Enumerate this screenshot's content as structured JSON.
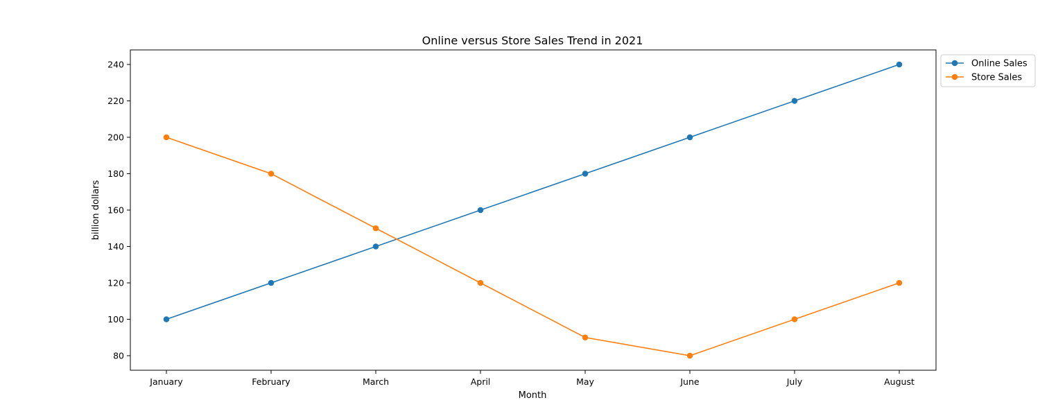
{
  "chart_data": {
    "type": "line",
    "title": "Online versus Store Sales Trend in 2021",
    "xlabel": "Month",
    "ylabel": "billion dollars",
    "categories": [
      "January",
      "February",
      "March",
      "April",
      "May",
      "June",
      "July",
      "August"
    ],
    "y_ticks": [
      80,
      100,
      120,
      140,
      160,
      180,
      200,
      220,
      240
    ],
    "ylim": [
      72,
      248
    ],
    "grid": false,
    "legend_position": "outside-top-right",
    "series": [
      {
        "name": "Online Sales",
        "color": "#1f77b4",
        "values": [
          100,
          120,
          140,
          160,
          180,
          200,
          220,
          240
        ]
      },
      {
        "name": "Store Sales",
        "color": "#ff7f0e",
        "values": [
          200,
          180,
          150,
          120,
          90,
          80,
          100,
          120
        ]
      }
    ]
  }
}
